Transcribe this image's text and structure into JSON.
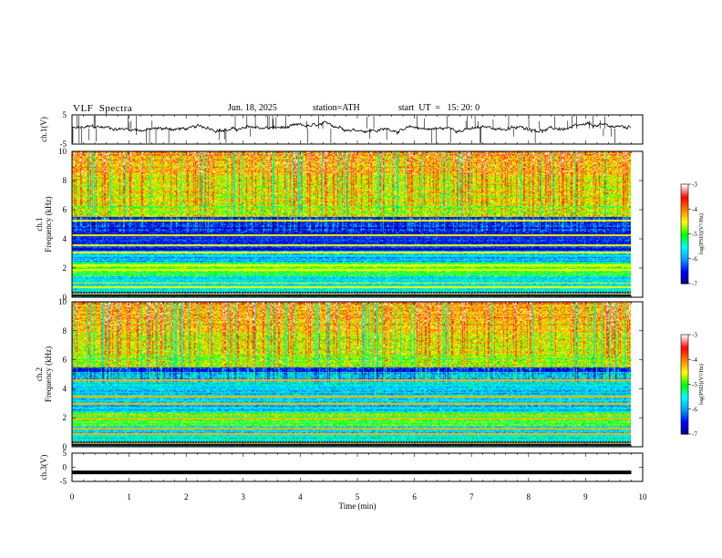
{
  "header": {
    "title": "VLF  Spectra",
    "date": "Jun. 18, 2025",
    "station": "station=ATH",
    "start": "start  UT  =   15: 20: 0"
  },
  "chart_data": {
    "type": "heatmap",
    "x_axis": {
      "label": "Time  (min)",
      "range": [
        0,
        10
      ],
      "ticks": [
        0,
        1,
        2,
        3,
        4,
        5,
        6,
        7,
        8,
        9,
        10
      ],
      "data_end": 9.8
    },
    "panels": [
      {
        "id": "ch1-waveform",
        "type": "line",
        "ylabel": "ch.1(V)",
        "ylim": [
          -5,
          5
        ],
        "yticks": [
          "5",
          "-5"
        ],
        "trace_level": 0.3
      },
      {
        "id": "ch1-spectrogram",
        "type": "heatmap",
        "ylabel": "ch.1\nFrequency  (kHz)",
        "ylabel_lines": [
          "ch.1",
          "Frequency  (kHz)"
        ],
        "ylim": [
          0,
          10
        ],
        "yticks": [
          "0",
          "2",
          "4",
          "6",
          "8",
          "10"
        ],
        "colorbar": {
          "label": "log(PSD)(V²/Hz)",
          "range": [
            -7,
            -3
          ],
          "ticks": [
            "-3",
            "-4",
            "-5",
            "-6",
            "-7"
          ]
        }
      },
      {
        "id": "ch2-spectrogram",
        "type": "heatmap",
        "ylabel": "ch.2\nFrequency  (kHz)",
        "ylabel_lines": [
          "ch.2",
          "Frequency  (kHz)"
        ],
        "ylim": [
          0,
          10
        ],
        "yticks": [
          "0",
          "2",
          "4",
          "6",
          "8",
          "10"
        ],
        "colorbar": {
          "label": "log(PSD)(V²/Hz)",
          "range": [
            -7,
            -3
          ],
          "ticks": [
            "-3",
            "-4",
            "-5",
            "-6",
            "-7"
          ]
        }
      },
      {
        "id": "ch3-waveform",
        "type": "line",
        "ylabel": "ch.3(V)",
        "ylim": [
          -5,
          5
        ],
        "yticks": [
          "5",
          "0",
          "-5"
        ],
        "trace_level": -1.8
      }
    ],
    "colormap": [
      "#000080",
      "#0000ff",
      "#00a0ff",
      "#00ffff",
      "#00ff00",
      "#ffff00",
      "#ff8000",
      "#ff0000",
      "#ffffff"
    ],
    "grid": false
  }
}
